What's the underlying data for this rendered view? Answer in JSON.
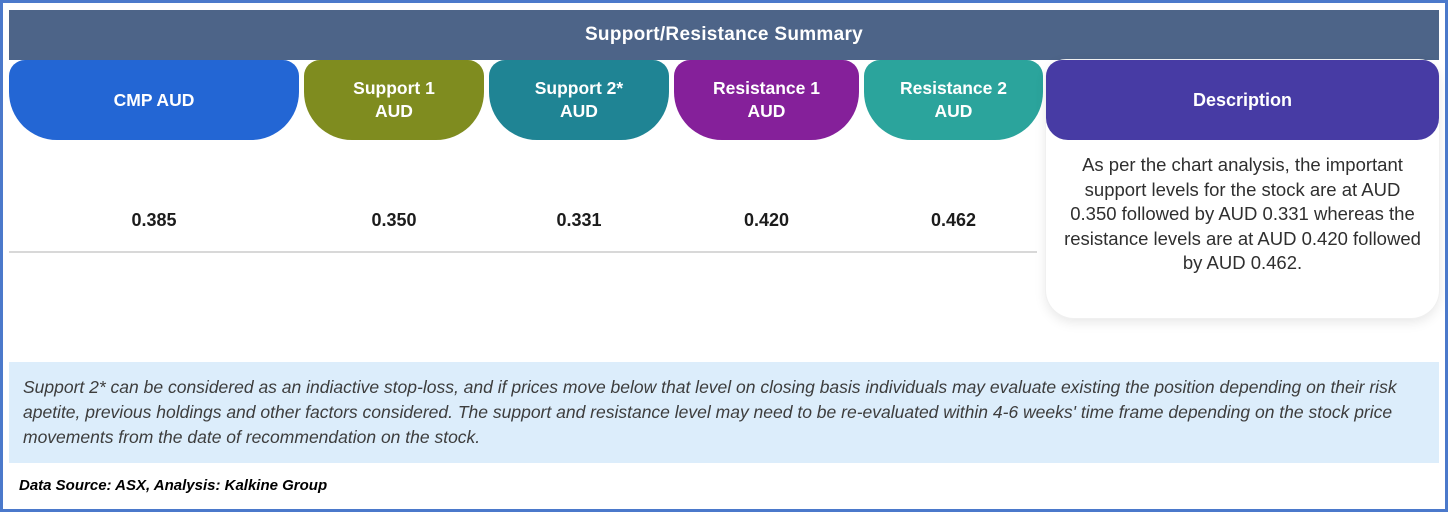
{
  "header": {
    "title": "Support/Resistance Summary",
    "bg": "#4d6488"
  },
  "columns": [
    {
      "line1": "CMP AUD",
      "line2": "",
      "value": "0.385",
      "color": "#2366d4"
    },
    {
      "line1": "Support 1",
      "line2": "AUD",
      "value": "0.350",
      "color": "#7f8c1f"
    },
    {
      "line1": "Support 2*",
      "line2": "AUD",
      "value": "0.331",
      "color": "#1f8494"
    },
    {
      "line1": "Resistance 1",
      "line2": "AUD",
      "value": "0.420",
      "color": "#85209a"
    },
    {
      "line1": "Resistance 2",
      "line2": "AUD",
      "value": "0.462",
      "color": "#2ba49c"
    }
  ],
  "description": {
    "label": "Description",
    "color": "#473ba4",
    "text": "As per the chart analysis, the important support levels for the stock are at AUD 0.350 followed by AUD 0.331 whereas the resistance levels are at AUD 0.420 followed by AUD 0.462."
  },
  "disclaimer": {
    "text": "Support 2* can be considered as an indiactive stop-loss, and if prices move below that level on closing basis individuals may evaluate existing the position depending on their risk apetite, previous holdings and other factors considered. The support and resistance level may need to be re-evaluated within 4-6 weeks' time frame depending on the stock price movements from  the date of recommendation on the stock.",
    "bg": "#dcedfb"
  },
  "source": {
    "text": "Data Source: ASX, Analysis: Kalkine Group"
  },
  "colors": {
    "outer_border": "#4b79cb",
    "separator": "#d8d8d8"
  }
}
